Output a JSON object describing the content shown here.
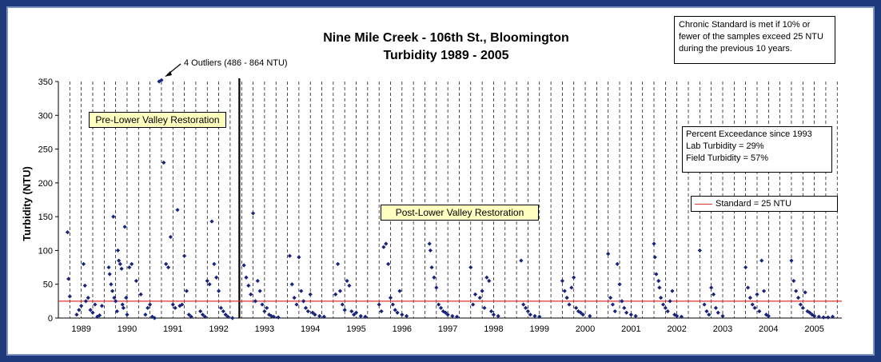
{
  "chart_data": {
    "type": "scatter",
    "title": "Nine Mile Creek - 106th St., Bloomington",
    "subtitle": "Turbidity 1989 - 2005",
    "ylabel": "Turbidity (NTU)",
    "xlabel": "",
    "ylim": [
      0,
      350
    ],
    "yticks": [
      0,
      50,
      100,
      150,
      200,
      250,
      300,
      350
    ],
    "x_range": [
      1988.5,
      2005.6
    ],
    "year_labels": [
      "1989",
      "1990",
      "1991",
      "1992",
      "1993",
      "1994",
      "1995",
      "1996",
      "1997",
      "1998",
      "1999",
      "2000",
      "2001",
      "2002",
      "2003",
      "2004",
      "2005"
    ],
    "grid": "vertical dashed lines at quarter-year intervals",
    "legend": "right",
    "standard": {
      "name": "Standard = 25 NTU",
      "value": 25,
      "color": "#e03030"
    },
    "divider_year": 1992.45,
    "marker_color": "#1a237e",
    "series": [
      {
        "name": "Turbidity",
        "points": [
          [
            1988.7,
            127
          ],
          [
            1988.72,
            58
          ],
          [
            1988.75,
            32
          ],
          [
            1988.9,
            5
          ],
          [
            1988.95,
            12
          ],
          [
            1989.0,
            18
          ],
          [
            1989.05,
            80
          ],
          [
            1989.08,
            48
          ],
          [
            1989.1,
            25
          ],
          [
            1989.15,
            30
          ],
          [
            1989.2,
            12
          ],
          [
            1989.25,
            8
          ],
          [
            1989.3,
            20
          ],
          [
            1989.35,
            2
          ],
          [
            1989.4,
            4
          ],
          [
            1989.45,
            18
          ],
          [
            1989.6,
            75
          ],
          [
            1989.62,
            65
          ],
          [
            1989.65,
            50
          ],
          [
            1989.68,
            40
          ],
          [
            1989.7,
            150
          ],
          [
            1989.72,
            30
          ],
          [
            1989.75,
            25
          ],
          [
            1989.78,
            10
          ],
          [
            1989.8,
            100
          ],
          [
            1989.82,
            85
          ],
          [
            1989.85,
            80
          ],
          [
            1989.88,
            73
          ],
          [
            1989.9,
            20
          ],
          [
            1989.92,
            15
          ],
          [
            1989.95,
            135
          ],
          [
            1989.98,
            30
          ],
          [
            1990.0,
            5
          ],
          [
            1990.05,
            75
          ],
          [
            1990.1,
            80
          ],
          [
            1990.2,
            55
          ],
          [
            1990.3,
            35
          ],
          [
            1990.4,
            5
          ],
          [
            1990.45,
            15
          ],
          [
            1990.5,
            20
          ],
          [
            1990.55,
            2
          ],
          [
            1990.6,
            0
          ],
          [
            1990.7,
            350
          ],
          [
            1990.75,
            352
          ],
          [
            1990.8,
            230
          ],
          [
            1990.85,
            80
          ],
          [
            1990.9,
            75
          ],
          [
            1990.95,
            120
          ],
          [
            1991.0,
            20
          ],
          [
            1991.05,
            15
          ],
          [
            1991.1,
            160
          ],
          [
            1991.15,
            18
          ],
          [
            1991.2,
            20
          ],
          [
            1991.25,
            92
          ],
          [
            1991.3,
            40
          ],
          [
            1991.35,
            5
          ],
          [
            1991.4,
            2
          ],
          [
            1991.6,
            10
          ],
          [
            1991.65,
            5
          ],
          [
            1991.7,
            2
          ],
          [
            1991.75,
            55
          ],
          [
            1991.8,
            50
          ],
          [
            1991.85,
            143
          ],
          [
            1991.9,
            80
          ],
          [
            1991.95,
            60
          ],
          [
            1992.0,
            40
          ],
          [
            1992.05,
            15
          ],
          [
            1992.1,
            10
          ],
          [
            1992.15,
            5
          ],
          [
            1992.2,
            2
          ],
          [
            1992.3,
            0
          ],
          [
            1992.55,
            78
          ],
          [
            1992.6,
            60
          ],
          [
            1992.65,
            48
          ],
          [
            1992.7,
            35
          ],
          [
            1992.75,
            155
          ],
          [
            1992.8,
            25
          ],
          [
            1992.85,
            55
          ],
          [
            1992.9,
            40
          ],
          [
            1992.95,
            20
          ],
          [
            1993.0,
            10
          ],
          [
            1993.05,
            15
          ],
          [
            1993.1,
            5
          ],
          [
            1993.15,
            3
          ],
          [
            1993.2,
            2
          ],
          [
            1993.3,
            1
          ],
          [
            1993.55,
            92
          ],
          [
            1993.6,
            50
          ],
          [
            1993.65,
            30
          ],
          [
            1993.7,
            20
          ],
          [
            1993.75,
            90
          ],
          [
            1993.8,
            40
          ],
          [
            1993.85,
            25
          ],
          [
            1993.9,
            15
          ],
          [
            1993.95,
            10
          ],
          [
            1994.0,
            35
          ],
          [
            1994.05,
            8
          ],
          [
            1994.1,
            5
          ],
          [
            1994.2,
            3
          ],
          [
            1994.3,
            2
          ],
          [
            1994.55,
            35
          ],
          [
            1994.6,
            80
          ],
          [
            1994.65,
            40
          ],
          [
            1994.7,
            20
          ],
          [
            1994.75,
            12
          ],
          [
            1994.8,
            55
          ],
          [
            1994.85,
            48
          ],
          [
            1994.9,
            10
          ],
          [
            1994.95,
            5
          ],
          [
            1995.0,
            8
          ],
          [
            1995.1,
            3
          ],
          [
            1995.2,
            2
          ],
          [
            1995.5,
            20
          ],
          [
            1995.55,
            10
          ],
          [
            1995.6,
            105
          ],
          [
            1995.65,
            110
          ],
          [
            1995.7,
            80
          ],
          [
            1995.75,
            30
          ],
          [
            1995.8,
            20
          ],
          [
            1995.85,
            12
          ],
          [
            1995.9,
            8
          ],
          [
            1995.95,
            40
          ],
          [
            1996.0,
            5
          ],
          [
            1996.1,
            3
          ],
          [
            1996.6,
            110
          ],
          [
            1996.62,
            100
          ],
          [
            1996.65,
            75
          ],
          [
            1996.7,
            60
          ],
          [
            1996.75,
            45
          ],
          [
            1996.8,
            20
          ],
          [
            1996.85,
            15
          ],
          [
            1996.9,
            10
          ],
          [
            1996.95,
            8
          ],
          [
            1997.0,
            5
          ],
          [
            1997.1,
            3
          ],
          [
            1997.2,
            2
          ],
          [
            1997.5,
            75
          ],
          [
            1997.55,
            20
          ],
          [
            1997.6,
            35
          ],
          [
            1997.7,
            30
          ],
          [
            1997.75,
            40
          ],
          [
            1997.8,
            15
          ],
          [
            1997.85,
            60
          ],
          [
            1997.9,
            55
          ],
          [
            1997.95,
            10
          ],
          [
            1998.0,
            5
          ],
          [
            1998.1,
            3
          ],
          [
            1998.6,
            85
          ],
          [
            1998.65,
            20
          ],
          [
            1998.7,
            15
          ],
          [
            1998.75,
            10
          ],
          [
            1998.8,
            5
          ],
          [
            1998.9,
            3
          ],
          [
            1999.0,
            2
          ],
          [
            1999.5,
            55
          ],
          [
            1999.55,
            40
          ],
          [
            1999.6,
            30
          ],
          [
            1999.65,
            20
          ],
          [
            1999.7,
            45
          ],
          [
            1999.75,
            60
          ],
          [
            1999.8,
            15
          ],
          [
            1999.85,
            10
          ],
          [
            1999.9,
            8
          ],
          [
            1999.95,
            5
          ],
          [
            2000.1,
            3
          ],
          [
            2000.5,
            95
          ],
          [
            2000.55,
            30
          ],
          [
            2000.6,
            20
          ],
          [
            2000.65,
            10
          ],
          [
            2000.7,
            80
          ],
          [
            2000.75,
            50
          ],
          [
            2000.8,
            25
          ],
          [
            2000.85,
            15
          ],
          [
            2000.9,
            8
          ],
          [
            2001.0,
            5
          ],
          [
            2001.1,
            3
          ],
          [
            2001.5,
            110
          ],
          [
            2001.52,
            90
          ],
          [
            2001.55,
            65
          ],
          [
            2001.6,
            55
          ],
          [
            2001.62,
            45
          ],
          [
            2001.65,
            30
          ],
          [
            2001.7,
            20
          ],
          [
            2001.75,
            15
          ],
          [
            2001.8,
            10
          ],
          [
            2001.85,
            25
          ],
          [
            2001.9,
            40
          ],
          [
            2001.95,
            5
          ],
          [
            2002.0,
            3
          ],
          [
            2002.1,
            2
          ],
          [
            2002.5,
            100
          ],
          [
            2002.6,
            20
          ],
          [
            2002.65,
            10
          ],
          [
            2002.7,
            5
          ],
          [
            2002.75,
            45
          ],
          [
            2002.8,
            35
          ],
          [
            2002.85,
            15
          ],
          [
            2002.9,
            8
          ],
          [
            2003.0,
            3
          ],
          [
            2003.5,
            75
          ],
          [
            2003.55,
            45
          ],
          [
            2003.6,
            30
          ],
          [
            2003.65,
            20
          ],
          [
            2003.7,
            15
          ],
          [
            2003.75,
            35
          ],
          [
            2003.8,
            10
          ],
          [
            2003.85,
            85
          ],
          [
            2003.9,
            40
          ],
          [
            2003.95,
            5
          ],
          [
            2004.0,
            3
          ],
          [
            2004.5,
            85
          ],
          [
            2004.55,
            55
          ],
          [
            2004.6,
            40
          ],
          [
            2004.65,
            30
          ],
          [
            2004.7,
            20
          ],
          [
            2004.75,
            15
          ],
          [
            2004.8,
            38
          ],
          [
            2004.85,
            10
          ],
          [
            2004.9,
            8
          ],
          [
            2004.95,
            5
          ],
          [
            2005.0,
            3
          ],
          [
            2005.1,
            2
          ],
          [
            2005.2,
            1
          ],
          [
            2005.3,
            1
          ],
          [
            2005.4,
            2
          ]
        ]
      }
    ]
  },
  "annotations": {
    "outliers": "4 Outliers (486 - 864 NTU)",
    "pre_restoration": "Pre-Lower Valley Restoration",
    "post_restoration": "Post-Lower Valley Restoration",
    "chronic_standard": [
      "Chronic Standard is met if 10% or",
      "fewer of the samples exceed 25 NTU",
      "during the previous 10 years."
    ],
    "exceedance_title": "Percent Exceedance since 1993",
    "exceedance_lab": "Lab Turbidity = 29%",
    "exceedance_field": "Field Turbidity = 57%"
  }
}
